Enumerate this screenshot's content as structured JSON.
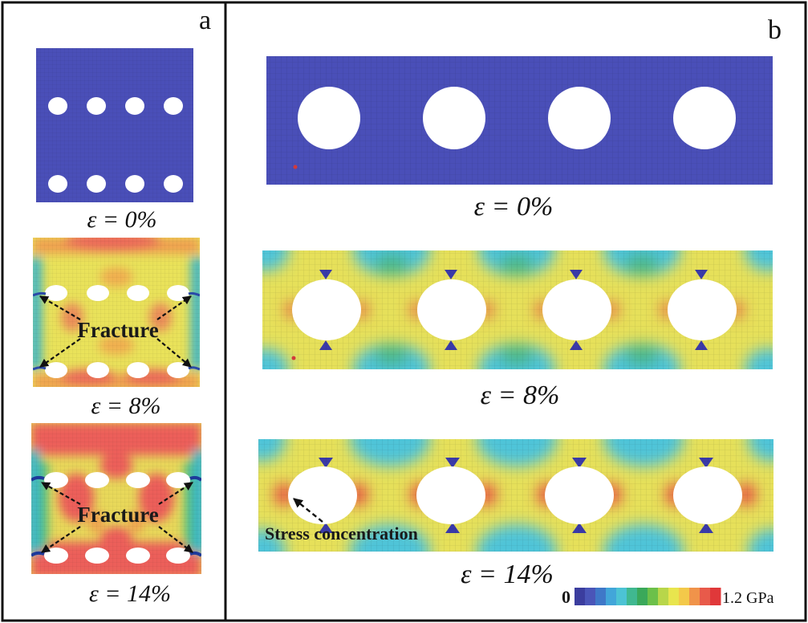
{
  "panel_a": {
    "letter": "a",
    "states": [
      {
        "strain_label": "ε = 0%"
      },
      {
        "strain_label": "ε = 8%",
        "annotation": "Fracture"
      },
      {
        "strain_label": "ε = 14%",
        "annotation": "Fracture"
      }
    ]
  },
  "panel_b": {
    "letter": "b",
    "states": [
      {
        "strain_label": "ε = 0%"
      },
      {
        "strain_label": "ε = 8%"
      },
      {
        "strain_label": "ε = 14%",
        "annotation": "Stress concentration"
      }
    ]
  },
  "colorbar": {
    "min_label": "0",
    "max_label": "1.2 GPa",
    "colors": [
      "#3b3d9e",
      "#4a55b8",
      "#3f78c8",
      "#42a6d9",
      "#4cc3d4",
      "#40b890",
      "#3aa85a",
      "#6cc04a",
      "#b8d64a",
      "#e8e54e",
      "#f3c94a",
      "#f0934a",
      "#e85a4a",
      "#e0383a"
    ]
  }
}
